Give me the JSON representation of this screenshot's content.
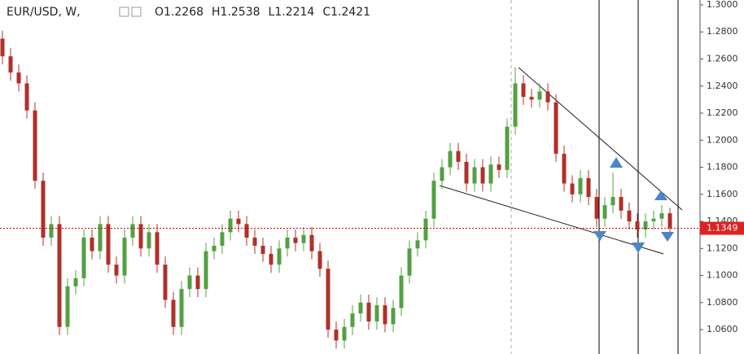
{
  "chart_data": {
    "type": "candlestick",
    "symbol": "EUR/USD, W,",
    "legend_ohlc": [
      "O1.2268",
      "H1.2538",
      "L1.2214",
      "C1.2421"
    ],
    "open": [
      1.275,
      1.262,
      1.25,
      1.242,
      1.222,
      1.17,
      1.128,
      1.138,
      1.062,
      1.092,
      1.098,
      1.128,
      1.118,
      1.138,
      1.108,
      1.1,
      1.128,
      1.138,
      1.12,
      1.132,
      1.108,
      1.082,
      1.062,
      1.09,
      1.1,
      1.09,
      1.118,
      1.122,
      1.132,
      1.142,
      1.138,
      1.128,
      1.122,
      1.116,
      1.108,
      1.12,
      1.128,
      1.124,
      1.13,
      1.118,
      1.105,
      1.06,
      1.052,
      1.062,
      1.072,
      1.08,
      1.066,
      1.078,
      1.064,
      1.076,
      1.1,
      1.12,
      1.126,
      1.142,
      1.17,
      1.18,
      1.192,
      1.184,
      1.168,
      1.18,
      1.168,
      1.182,
      1.178,
      1.21,
      1.242,
      1.232,
      1.23,
      1.236,
      1.228,
      1.19,
      1.168,
      1.16,
      1.172,
      1.158,
      1.142,
      1.152,
      1.158,
      1.148,
      1.14,
      1.134,
      1.14,
      1.142,
      1.146
    ],
    "high": [
      1.281,
      1.268,
      1.256,
      1.248,
      1.228,
      1.176,
      1.144,
      1.144,
      1.098,
      1.104,
      1.134,
      1.134,
      1.144,
      1.144,
      1.114,
      1.134,
      1.144,
      1.144,
      1.138,
      1.138,
      1.114,
      1.088,
      1.096,
      1.106,
      1.106,
      1.124,
      1.128,
      1.138,
      1.148,
      1.148,
      1.144,
      1.134,
      1.128,
      1.122,
      1.126,
      1.134,
      1.134,
      1.136,
      1.136,
      1.124,
      1.111,
      1.066,
      1.068,
      1.078,
      1.086,
      1.086,
      1.084,
      1.084,
      1.082,
      1.106,
      1.126,
      1.132,
      1.148,
      1.176,
      1.186,
      1.198,
      1.198,
      1.19,
      1.186,
      1.186,
      1.188,
      1.188,
      1.216,
      1.254,
      1.248,
      1.238,
      1.242,
      1.242,
      1.234,
      1.196,
      1.174,
      1.178,
      1.178,
      1.164,
      1.158,
      1.176,
      1.164,
      1.154,
      1.146,
      1.146,
      1.148,
      1.152,
      1.15
    ],
    "low": [
      1.256,
      1.244,
      1.236,
      1.216,
      1.164,
      1.122,
      1.122,
      1.056,
      1.056,
      1.086,
      1.092,
      1.112,
      1.112,
      1.102,
      1.094,
      1.094,
      1.122,
      1.114,
      1.114,
      1.102,
      1.076,
      1.056,
      1.056,
      1.084,
      1.084,
      1.084,
      1.112,
      1.116,
      1.126,
      1.132,
      1.122,
      1.116,
      1.11,
      1.102,
      1.102,
      1.114,
      1.118,
      1.118,
      1.112,
      1.099,
      1.054,
      1.046,
      1.046,
      1.056,
      1.066,
      1.06,
      1.06,
      1.058,
      1.058,
      1.07,
      1.094,
      1.114,
      1.12,
      1.136,
      1.164,
      1.174,
      1.178,
      1.162,
      1.162,
      1.162,
      1.162,
      1.172,
      1.172,
      1.204,
      1.226,
      1.224,
      1.224,
      1.222,
      1.184,
      1.162,
      1.154,
      1.154,
      1.152,
      1.136,
      1.136,
      1.146,
      1.142,
      1.134,
      1.128,
      1.128,
      1.134,
      1.136,
      1.13
    ],
    "close": [
      1.262,
      1.25,
      1.242,
      1.222,
      1.17,
      1.128,
      1.138,
      1.062,
      1.092,
      1.098,
      1.128,
      1.118,
      1.138,
      1.108,
      1.1,
      1.128,
      1.138,
      1.12,
      1.132,
      1.108,
      1.082,
      1.062,
      1.09,
      1.1,
      1.09,
      1.118,
      1.122,
      1.132,
      1.142,
      1.138,
      1.128,
      1.122,
      1.116,
      1.108,
      1.12,
      1.128,
      1.124,
      1.13,
      1.118,
      1.105,
      1.06,
      1.052,
      1.062,
      1.072,
      1.08,
      1.066,
      1.078,
      1.064,
      1.076,
      1.1,
      1.12,
      1.126,
      1.142,
      1.17,
      1.18,
      1.192,
      1.184,
      1.168,
      1.18,
      1.168,
      1.182,
      1.178,
      1.21,
      1.242,
      1.232,
      1.23,
      1.236,
      1.228,
      1.19,
      1.168,
      1.16,
      1.172,
      1.158,
      1.142,
      1.152,
      1.158,
      1.148,
      1.14,
      1.134,
      1.14,
      1.142,
      1.146,
      1.135
    ],
    "up_color": "#53a043",
    "down_color": "#b0302a",
    "last_price": {
      "value": 1.1349,
      "label": "1.1349"
    },
    "ylim": [
      1.042,
      1.3036
    ],
    "yticks": [
      {
        "value": 1.3,
        "label": "1.3000"
      },
      {
        "value": 1.28,
        "label": "1.2800"
      },
      {
        "value": 1.26,
        "label": "1.2600"
      },
      {
        "value": 1.24,
        "label": "1.2400"
      },
      {
        "value": 1.22,
        "label": "1.2200"
      },
      {
        "value": 1.2,
        "label": "1.2000"
      },
      {
        "value": 1.18,
        "label": "1.1800"
      },
      {
        "value": 1.16,
        "label": "1.1600"
      },
      {
        "value": 1.14,
        "label": "1.1400"
      },
      {
        "value": 1.12,
        "label": "1.1200"
      },
      {
        "value": 1.1,
        "label": "1.1000"
      },
      {
        "value": 1.08,
        "label": "1.0800"
      },
      {
        "value": 1.06,
        "label": "1.0600"
      }
    ]
  }
}
